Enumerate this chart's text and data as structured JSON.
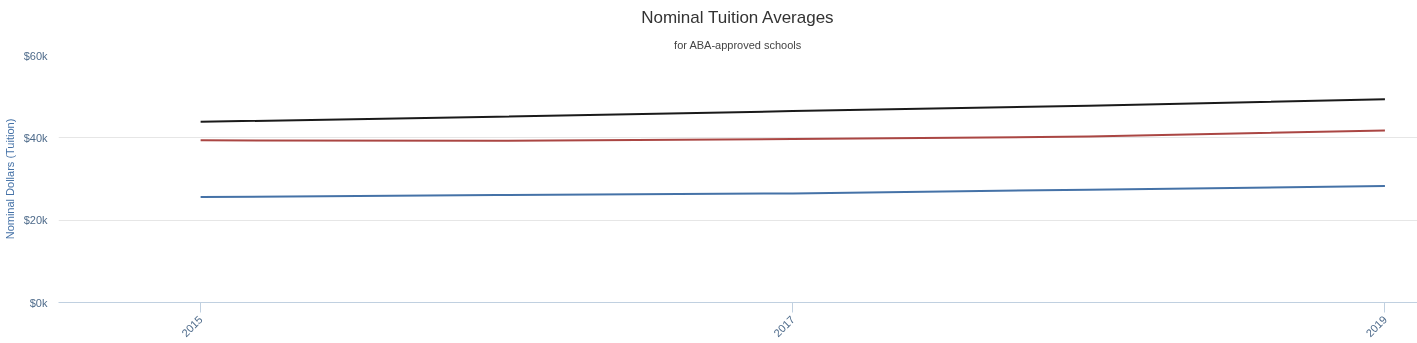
{
  "chart_data": {
    "type": "line",
    "title": "Nominal Tuition Averages",
    "subtitle": "for ABA-approved schools",
    "ylabel": "Nominal Dollars (Tuition)",
    "x": [
      2015,
      2016,
      2017,
      2018,
      2019
    ],
    "series": [
      {
        "color": "#4572a7",
        "values": [
          25.6,
          26.1,
          26.5,
          27.4,
          28.3
        ]
      },
      {
        "color": "#aa4643",
        "values": [
          39.4,
          39.3,
          39.7,
          40.3,
          41.8
        ]
      },
      {
        "color": "#1a1a1a",
        "values": [
          43.9,
          45.1,
          46.5,
          47.8,
          49.4
        ]
      }
    ],
    "xlim": [
      2014.52,
      2019.11
    ],
    "xticks": [
      2015,
      2017,
      2019
    ],
    "ylim": [
      0,
      60
    ],
    "yticks": [
      {
        "value": 0,
        "label": "$0k"
      },
      {
        "value": 20,
        "label": "$20k"
      },
      {
        "value": 40,
        "label": "$40k"
      },
      {
        "value": 60,
        "label": "$60k"
      }
    ],
    "grid": "y",
    "marker": "none",
    "line_style": "solid"
  }
}
